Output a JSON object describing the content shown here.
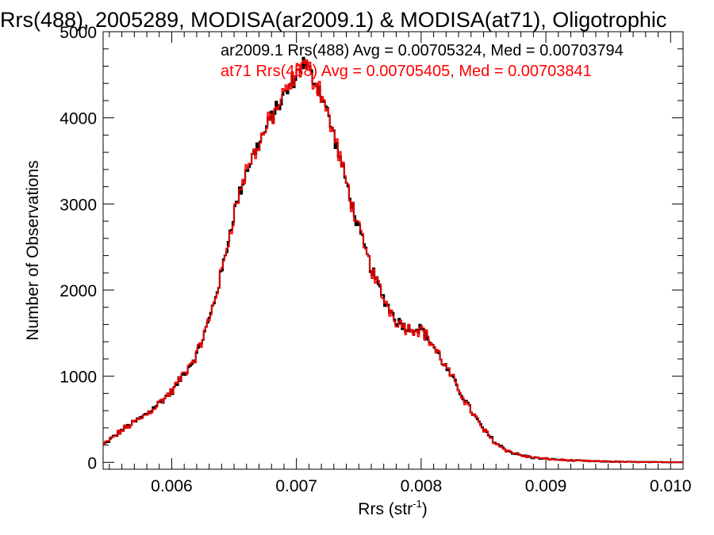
{
  "chart_data": {
    "type": "line",
    "title": "Rrs(488), 2005289, MODISA(ar2009.1) & MODISA(at71), Oligotrophic",
    "xlabel": "Rrs (str",
    "xlabel_sup": "-1",
    "xlabel_close": ")",
    "ylabel": "Number of Observations",
    "xlim": [
      0.00545,
      0.0101
    ],
    "ylim": [
      -80,
      5000
    ],
    "xticks": [
      {
        "value": 0.006,
        "label": "0.006"
      },
      {
        "value": 0.007,
        "label": "0.007"
      },
      {
        "value": 0.008,
        "label": "0.008"
      },
      {
        "value": 0.009,
        "label": "0.009"
      },
      {
        "value": 0.01,
        "label": "0.010"
      }
    ],
    "yticks": [
      {
        "value": 0,
        "label": "0"
      },
      {
        "value": 1000,
        "label": "1000"
      },
      {
        "value": 2000,
        "label": "2000"
      },
      {
        "value": 3000,
        "label": "3000"
      },
      {
        "value": 4000,
        "label": "4000"
      },
      {
        "value": 5000,
        "label": "5000"
      }
    ],
    "grid": false,
    "step": true,
    "anchors": {
      "x": [
        0.00545,
        0.0056,
        0.0058,
        0.006,
        0.0062,
        0.0063,
        0.0064,
        0.0065,
        0.0066,
        0.0067,
        0.0068,
        0.0069,
        0.007,
        0.00705,
        0.0071,
        0.0072,
        0.0073,
        0.0074,
        0.0075,
        0.0076,
        0.0077,
        0.0078,
        0.0079,
        0.008,
        0.0081,
        0.0082,
        0.0083,
        0.0084,
        0.0085,
        0.0086,
        0.0087,
        0.0088,
        0.0089,
        0.009,
        0.0092,
        0.0094,
        0.0096,
        0.0098,
        0.0101
      ],
      "y": [
        200,
        370,
        560,
        820,
        1250,
        1650,
        2200,
        2900,
        3400,
        3700,
        4000,
        4250,
        4500,
        4650,
        4550,
        4300,
        3800,
        3250,
        2700,
        2250,
        1900,
        1650,
        1550,
        1550,
        1350,
        1100,
        850,
        600,
        380,
        220,
        130,
        80,
        55,
        40,
        22,
        12,
        6,
        3,
        1
      ]
    },
    "series": [
      {
        "name": "ar2009.1",
        "legend": "ar2009.1 Rrs(488) Avg = 0.00705324, Med = 0.00703794",
        "color": "#000000"
      },
      {
        "name": "at71",
        "legend": "at71 Rrs(488) Avg = 0.00705405, Med = 0.00703841",
        "color": "#ff0000"
      }
    ],
    "legend_position": "top-right"
  }
}
